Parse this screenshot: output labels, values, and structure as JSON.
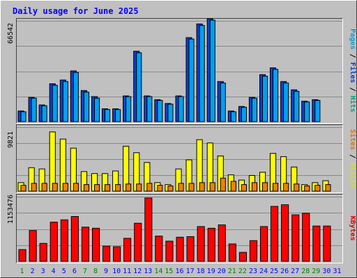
{
  "chart_data": {
    "type": "bar",
    "title": "Daily usage for June 2025",
    "days": [
      "1",
      "2",
      "3",
      "4",
      "5",
      "6",
      "7",
      "8",
      "9",
      "10",
      "11",
      "12",
      "13",
      "14",
      "15",
      "16",
      "17",
      "18",
      "19",
      "20",
      "21",
      "22",
      "23",
      "24",
      "25",
      "26",
      "27",
      "28",
      "29",
      "30",
      "31"
    ],
    "weekend_days": [
      "1",
      "7",
      "8",
      "14",
      "15",
      "21",
      "22",
      "28",
      "29"
    ],
    "panels": [
      {
        "id": "hits",
        "max_label": "66542",
        "ymax": 66542,
        "side_label": [
          {
            "text": "Pages",
            "color": "#00a0e0"
          },
          {
            "text": " / ",
            "color": "#000000"
          },
          {
            "text": "Files",
            "color": "#0040d0"
          },
          {
            "text": " / ",
            "color": "#000000"
          },
          {
            "text": "Hits",
            "color": "#00a080"
          }
        ],
        "series": [
          {
            "name": "Hits",
            "color": "#1040d0",
            "values": [
              7000,
              16000,
              11000,
              25000,
              27500,
              33500,
              20500,
              16500,
              8500,
              8500,
              17000,
              46500,
              17000,
              14500,
              12000,
              17000,
              55500,
              64500,
              68000,
              26500,
              7000,
              10000,
              16000,
              31000,
              35500,
              26500,
              21000,
              13500,
              14500,
              0,
              0
            ]
          },
          {
            "name": "Files",
            "color": "#00a0f0",
            "values": [
              6500,
              15500,
              10500,
              24000,
              26500,
              32500,
              19500,
              15500,
              8000,
              8000,
              16500,
              45500,
              16500,
              14000,
              11500,
              16500,
              54500,
              63500,
              67000,
              25500,
              6500,
              9500,
              15500,
              30000,
              34500,
              25500,
              20000,
              13000,
              14000,
              0,
              0
            ]
          }
        ]
      },
      {
        "id": "visits",
        "max_label": "9821",
        "ymax": 9821,
        "side_label": [
          {
            "text": "Sites",
            "color": "#e07000"
          },
          {
            "text": " / ",
            "color": "#000000"
          },
          {
            "text": "Visits",
            "color": "#e0e000"
          }
        ],
        "series": [
          {
            "name": "Visits",
            "color": "#ffff00",
            "values": [
              1300,
              3600,
              3400,
              9100,
              8000,
              6600,
              3000,
              2700,
              2700,
              3100,
              6900,
              5900,
              4400,
              1300,
              1000,
              3400,
              4800,
              7900,
              7400,
              5400,
              2500,
              1700,
              2400,
              2900,
              5800,
              5300,
              3700,
              1000,
              1300,
              1600,
              0
            ]
          },
          {
            "name": "Sites",
            "color": "#f08000",
            "values": [
              900,
              1200,
              1200,
              1200,
              1200,
              1200,
              1000,
              1000,
              1000,
              1000,
              1100,
              1100,
              1200,
              900,
              800,
              1200,
              1200,
              1300,
              1300,
              2000,
              1500,
              1000,
              1300,
              1300,
              1200,
              1200,
              1100,
              800,
              900,
              1000,
              0
            ]
          }
        ]
      },
      {
        "id": "kbytes",
        "max_label": "1153476",
        "ymax": 1153476,
        "side_label": [
          {
            "text": "KBytes",
            "color": "#e00000"
          }
        ],
        "series": [
          {
            "name": "KBytes",
            "color": "#ff0000",
            "values": [
              210000,
              550000,
              320000,
              700000,
              740000,
              800000,
              610000,
              590000,
              270000,
              260000,
              410000,
              680000,
              1130000,
              450000,
              360000,
              430000,
              440000,
              620000,
              590000,
              650000,
              310000,
              160000,
              370000,
              620000,
              980000,
              1010000,
              830000,
              860000,
              630000,
              630000,
              0
            ]
          }
        ]
      }
    ],
    "colors": {
      "background": "#c0c0c0",
      "title": "#0000ff",
      "grid": "#888888",
      "weekday_label": "#0000ff",
      "weekend_label": "#008000"
    }
  }
}
